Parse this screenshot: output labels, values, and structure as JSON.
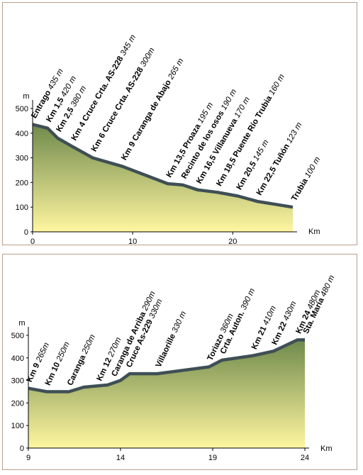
{
  "chart_data": [
    {
      "type": "area",
      "title": "",
      "xlabel": "Km",
      "ylabel": "m",
      "xlim": [
        0,
        26
      ],
      "ylim": [
        0,
        500
      ],
      "xticks": [
        0,
        10,
        20
      ],
      "yticks": [
        0,
        100,
        200,
        300,
        400,
        500
      ],
      "grid": false,
      "profile": [
        {
          "x": 0,
          "y": 435
        },
        {
          "x": 1.5,
          "y": 420
        },
        {
          "x": 2.5,
          "y": 380
        },
        {
          "x": 4,
          "y": 345
        },
        {
          "x": 6,
          "y": 300
        },
        {
          "x": 9,
          "y": 265
        },
        {
          "x": 13.5,
          "y": 195
        },
        {
          "x": 15,
          "y": 190
        },
        {
          "x": 16.5,
          "y": 170
        },
        {
          "x": 18.5,
          "y": 160
        },
        {
          "x": 20.5,
          "y": 145
        },
        {
          "x": 22.5,
          "y": 123
        },
        {
          "x": 26,
          "y": 100
        }
      ],
      "stops": [
        {
          "x": 0,
          "y": 435,
          "name": "Entrago",
          "alt": "435 m"
        },
        {
          "x": 1.5,
          "y": 420,
          "name": "Km 1,5",
          "alt": "420 m"
        },
        {
          "x": 2.5,
          "y": 380,
          "name": "Km 2,5",
          "alt": "380 m"
        },
        {
          "x": 4,
          "y": 345,
          "name": "Km 4 Cruce Crta. AS-228",
          "alt": "345 m"
        },
        {
          "x": 6,
          "y": 300,
          "name": "Km 6 Cruce Crta. AS-228",
          "alt": "300m"
        },
        {
          "x": 9,
          "y": 265,
          "name": "Km 9 Caranga de Abajo",
          "alt": "265 m"
        },
        {
          "x": 13.5,
          "y": 195,
          "name": "Km 13,5 Proaza",
          "alt": "195 m"
        },
        {
          "x": 15,
          "y": 190,
          "name": "Recinto de los osos",
          "alt": "190 m"
        },
        {
          "x": 16.5,
          "y": 170,
          "name": "Km 16,5 Villanueva",
          "alt": "170 m"
        },
        {
          "x": 18.5,
          "y": 160,
          "name": "Km 18,5 Puente Río Trubia",
          "alt": "160 m"
        },
        {
          "x": 20.5,
          "y": 145,
          "name": "Km 20,5",
          "alt": "145 m"
        },
        {
          "x": 22.5,
          "y": 123,
          "name": "Km 22,5 Tuñón",
          "alt": "123 m"
        },
        {
          "x": 26,
          "y": 100,
          "name": "Trubia",
          "alt": "100 m"
        }
      ],
      "colors": {
        "fill_top": "#6f8a4c",
        "fill_bottom": "#fff6a0",
        "line": "#3f4f55"
      }
    },
    {
      "type": "area",
      "title": "",
      "xlabel": "Km",
      "ylabel": "m",
      "xlim": [
        9,
        24
      ],
      "ylim": [
        0,
        500
      ],
      "xticks": [
        9,
        14,
        19,
        24
      ],
      "yticks": [
        0,
        100,
        200,
        300,
        400,
        500
      ],
      "grid": false,
      "profile": [
        {
          "x": 9,
          "y": 265
        },
        {
          "x": 10,
          "y": 250
        },
        {
          "x": 11.2,
          "y": 250
        },
        {
          "x": 12,
          "y": 270
        },
        {
          "x": 13.3,
          "y": 280
        },
        {
          "x": 14,
          "y": 300
        },
        {
          "x": 14.5,
          "y": 330
        },
        {
          "x": 16,
          "y": 330
        },
        {
          "x": 18.8,
          "y": 360
        },
        {
          "x": 19.5,
          "y": 390
        },
        {
          "x": 21.2,
          "y": 410
        },
        {
          "x": 22.3,
          "y": 430
        },
        {
          "x": 23.6,
          "y": 480
        },
        {
          "x": 24,
          "y": 480
        }
      ],
      "stops": [
        {
          "x": 9,
          "y": 265,
          "name": "Km 9",
          "alt": "265m"
        },
        {
          "x": 10,
          "y": 250,
          "name": "Km 10",
          "alt": "250m"
        },
        {
          "x": 11.2,
          "y": 250,
          "name": "Caranga",
          "alt": "250m"
        },
        {
          "x": 12.8,
          "y": 270,
          "name": "Km 12",
          "alt": "270m"
        },
        {
          "x": 13.6,
          "y": 290,
          "name": "Caranga de Arriba",
          "alt": "290m"
        },
        {
          "x": 14.4,
          "y": 330,
          "name": "Cruce As-229",
          "alt": "330m"
        },
        {
          "x": 16,
          "y": 330,
          "name": "Villaorille",
          "alt": "330 m"
        },
        {
          "x": 18.8,
          "y": 360,
          "name": "Toriazo",
          "alt": "360m"
        },
        {
          "x": 19.5,
          "y": 390,
          "name": "Crta. Auton.",
          "alt": "390 m"
        },
        {
          "x": 21.2,
          "y": 410,
          "name": "Km 21",
          "alt": "410m"
        },
        {
          "x": 22.3,
          "y": 430,
          "name": "Km 22",
          "alt": "430m"
        },
        {
          "x": 23.6,
          "y": 480,
          "name": "Km 24",
          "alt": "480m"
        },
        {
          "x": 24,
          "y": 480,
          "name": "Sta. María",
          "alt": "480 m"
        }
      ],
      "colors": {
        "fill_top": "#6f8a4c",
        "fill_bottom": "#fff6a0",
        "line": "#3f4f55"
      }
    }
  ]
}
